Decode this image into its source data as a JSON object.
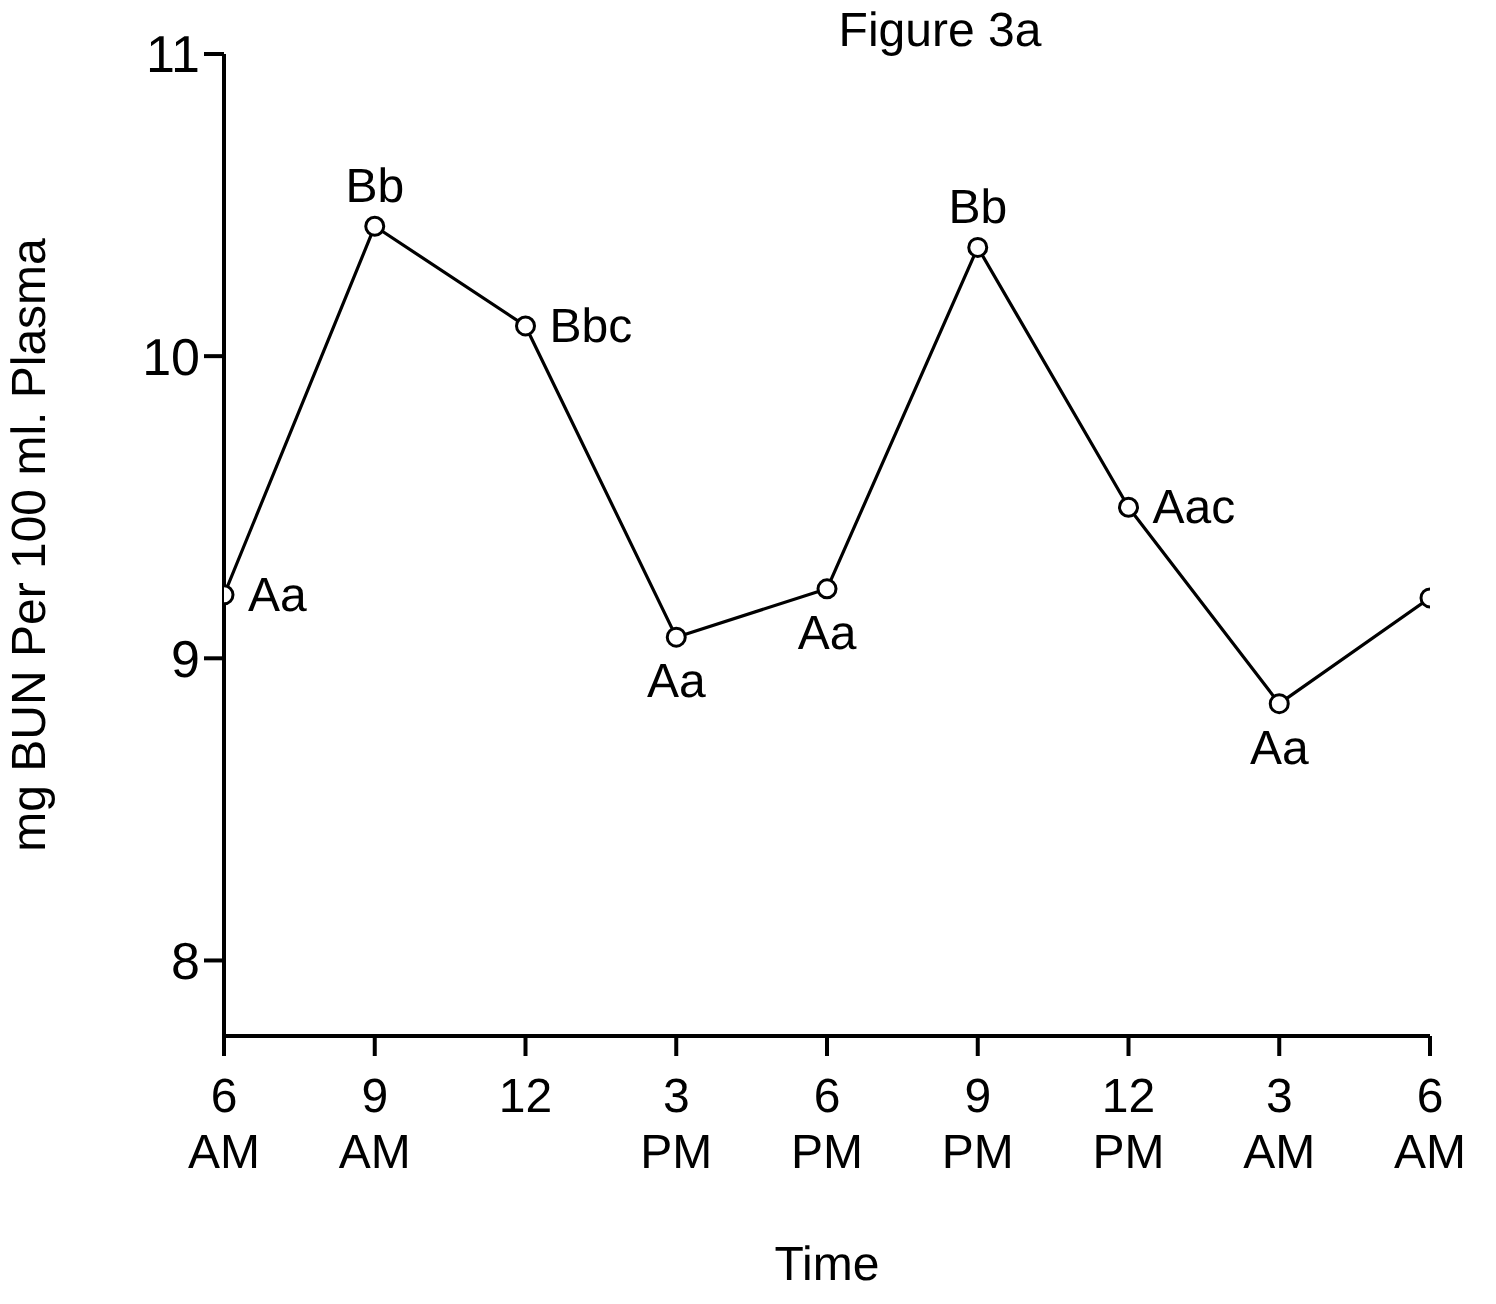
{
  "chart_data": {
    "type": "line",
    "title": "Figure 3a",
    "xlabel": "Time",
    "ylabel": "mg  BUN  Per  100 ml.  Plasma",
    "categories": [
      "6 AM",
      "9 AM",
      "12",
      "3 PM",
      "6 PM",
      "9 PM",
      "12 PM",
      "3 AM",
      "6 AM"
    ],
    "series": [
      {
        "color": "#000000",
        "values": [
          9.21,
          10.43,
          10.1,
          9.07,
          9.23,
          10.36,
          9.5,
          8.85,
          9.2
        ],
        "value_labels": [
          "Aa",
          "Bb",
          "Bbc",
          "Aa",
          "Aa",
          "Bb",
          "Aac",
          "Aa",
          null
        ]
      }
    ],
    "ylim": [
      7.75,
      11
    ],
    "yticks": [
      8,
      9,
      10,
      11
    ],
    "marker": "circle",
    "line_style": "solid"
  }
}
